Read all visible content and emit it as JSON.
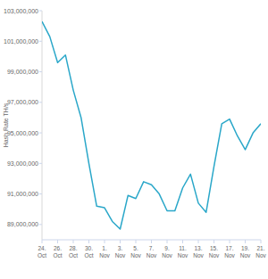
{
  "chart_data": {
    "type": "line",
    "y_label": "Hash Rate TH/s",
    "categories": [
      "24. Oct",
      null,
      "26. Oct",
      null,
      "28. Oct",
      null,
      "30. Oct",
      null,
      "1. Nov",
      null,
      "3. Nov",
      null,
      "5. Nov",
      null,
      "7. Nov",
      null,
      "9. Nov",
      null,
      "11. Nov",
      null,
      "13. Nov",
      null,
      "15. Nov",
      null,
      "17. Nov",
      null,
      "19. Nov",
      null,
      "21. Nov"
    ],
    "series": [
      {
        "name": "Hash Rate",
        "color": "#2aa7c9",
        "values": [
          102300000,
          101300000,
          99600000,
          100100000,
          97800000,
          96000000,
          93000000,
          90200000,
          90100000,
          89200000,
          88700000,
          90900000,
          90700000,
          91800000,
          91600000,
          91000000,
          89900000,
          89900000,
          91400000,
          92300000,
          90400000,
          89800000,
          92800000,
          95600000,
          95900000,
          94800000,
          93900000,
          95000000,
          95600000
        ]
      }
    ],
    "ylim": [
      88000000,
      103000000
    ],
    "yticks": [
      {
        "value": 89000000,
        "label": "89,000,000"
      },
      {
        "value": 91000000,
        "label": "91,000,000"
      },
      {
        "value": 93000000,
        "label": "93,000,000"
      },
      {
        "value": 95000000,
        "label": "95,000,000"
      },
      {
        "value": 97000000,
        "label": "97,000,000"
      },
      {
        "value": 99000000,
        "label": "99,000,000"
      },
      {
        "value": 101000000,
        "label": "101,000,000"
      },
      {
        "value": 103000000,
        "label": "103,000,000"
      }
    ],
    "grid": false
  }
}
